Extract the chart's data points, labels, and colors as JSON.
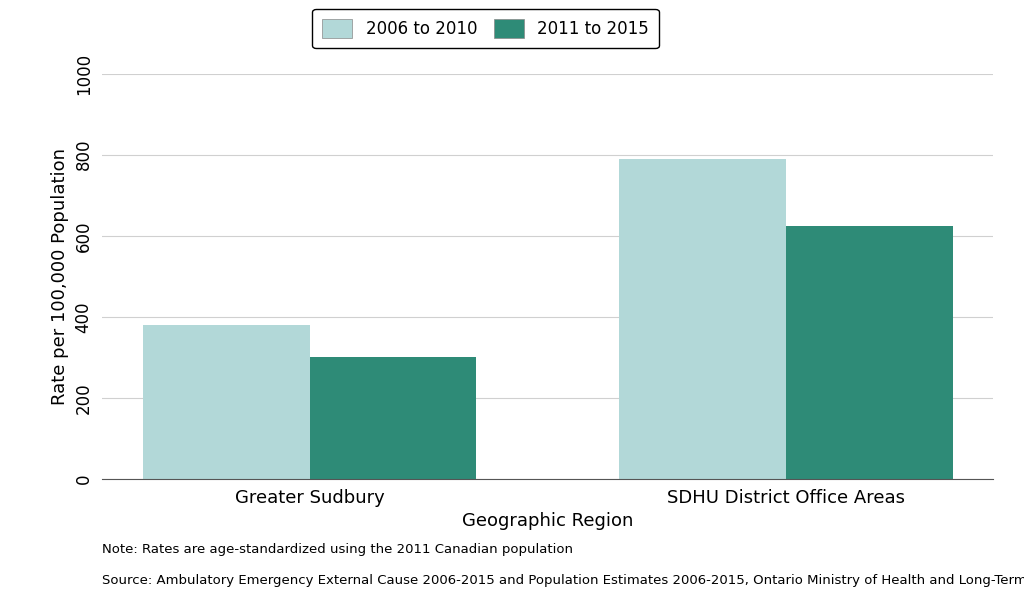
{
  "categories": [
    "Greater Sudbury",
    "SDHU District Office Areas"
  ],
  "series": {
    "2006 to 2010": [
      380,
      790
    ],
    "2011 to 2015": [
      300,
      625
    ]
  },
  "colors": {
    "2006 to 2010": "#b2d8d8",
    "2011 to 2015": "#2e8b77"
  },
  "ylabel": "Rate per 100,000 Population",
  "xlabel": "Geographic Region",
  "ylim": [
    0,
    1000
  ],
  "yticks": [
    0,
    200,
    400,
    600,
    800,
    1000
  ],
  "bar_width": 0.35,
  "legend_labels": [
    "2006 to 2010",
    "2011 to 2015"
  ],
  "note_line1": "Note: Rates are age-standardized using the 2011 Canadian population",
  "note_line2": "Source: Ambulatory Emergency External Cause 2006-2015 and Population Estimates 2006-2015, Ontario Ministry of Health and Long-Term Care, IntelliHEALTH Ontario",
  "background_color": "#ffffff",
  "grid_color": "#d0d0d0",
  "label_fontsize": 13,
  "tick_fontsize": 12,
  "legend_fontsize": 12,
  "note_fontsize": 9.5
}
